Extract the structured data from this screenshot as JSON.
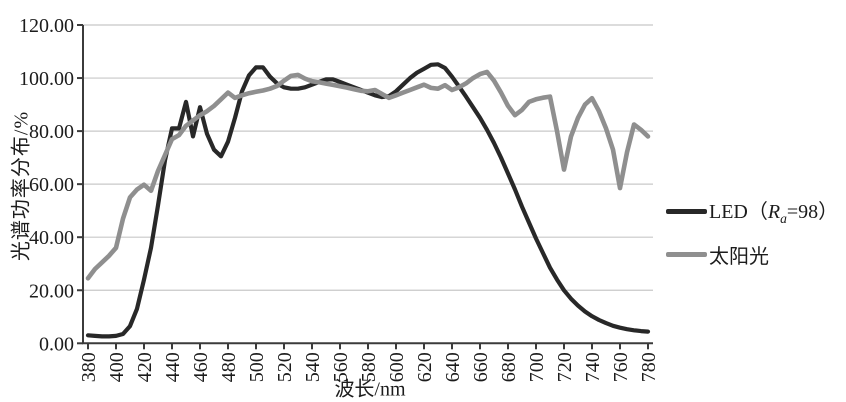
{
  "figure": {
    "background": "#ffffff",
    "grid_color": "#c8c8c8",
    "axis_color": "#3b3b3b",
    "text_color": "#1c1c1c"
  },
  "y_axis": {
    "title": "光谱功率分布/%",
    "min": 0,
    "max": 120,
    "step": 20,
    "tick_labels": [
      "0.00",
      "20.00",
      "40.00",
      "60.00",
      "80.00",
      "100.00",
      "120.00"
    ]
  },
  "x_axis": {
    "title": "波长/nm",
    "min": 380,
    "max": 780,
    "step": 20,
    "tick_labels": [
      "380",
      "400",
      "420",
      "440",
      "460",
      "480",
      "500",
      "520",
      "540",
      "560",
      "580",
      "600",
      "620",
      "640",
      "660",
      "680",
      "700",
      "720",
      "740",
      "760",
      "780"
    ]
  },
  "legend": {
    "items": [
      {
        "id": "led",
        "color": "#282828",
        "label_text": "LED（Ra=98）",
        "label_parts": [
          {
            "t": "LED（"
          },
          {
            "t": "R",
            "style": "italic"
          },
          {
            "t": "a",
            "style": "sub"
          },
          {
            "t": "=98）"
          }
        ]
      },
      {
        "id": "sun",
        "color": "#8f8f8f",
        "label_text": "太阳光",
        "label_parts": [
          {
            "t": "太阳光"
          }
        ]
      }
    ]
  },
  "chart_data": {
    "type": "line",
    "title": "",
    "xlabel": "波长/nm",
    "ylabel": "光谱功率分布/%",
    "xlim": [
      380,
      780
    ],
    "ylim": [
      0,
      120
    ],
    "grid": "horizontal",
    "legend_position": "right",
    "x": [
      380,
      385,
      390,
      395,
      400,
      405,
      410,
      415,
      420,
      425,
      430,
      435,
      440,
      445,
      450,
      455,
      460,
      465,
      470,
      475,
      480,
      485,
      490,
      495,
      500,
      505,
      510,
      515,
      520,
      525,
      530,
      535,
      540,
      545,
      550,
      555,
      560,
      565,
      570,
      575,
      580,
      585,
      590,
      595,
      600,
      605,
      610,
      615,
      620,
      625,
      630,
      635,
      640,
      645,
      650,
      655,
      660,
      665,
      670,
      675,
      680,
      685,
      690,
      695,
      700,
      705,
      710,
      715,
      720,
      725,
      730,
      735,
      740,
      745,
      750,
      755,
      760,
      765,
      770,
      775,
      780
    ],
    "series": [
      {
        "name": "LED（Ra=98）",
        "color": "#282828",
        "stroke_width": 4.2,
        "values": [
          3,
          2.8,
          2.6,
          2.6,
          2.8,
          3.5,
          6.5,
          13,
          24,
          36,
          52,
          69,
          81,
          81,
          91,
          78,
          89,
          79,
          73,
          70.5,
          76,
          85,
          95,
          101,
          104,
          104,
          100.5,
          98,
          96.5,
          96,
          96,
          96.5,
          97.5,
          98.5,
          99.5,
          99.5,
          98.5,
          97.5,
          96.5,
          95.5,
          94.5,
          93.5,
          92.8,
          93.2,
          95,
          97.5,
          100,
          102,
          103.5,
          105,
          105.2,
          103.8,
          100.5,
          96.8,
          93,
          89,
          85,
          80.5,
          75.5,
          70,
          64,
          58,
          51.5,
          45.5,
          39.5,
          34,
          28.5,
          24,
          20,
          16.8,
          14.2,
          12,
          10.2,
          8.8,
          7.6,
          6.6,
          5.9,
          5.3,
          4.9,
          4.6,
          4.4
        ]
      },
      {
        "name": "太阳光",
        "color": "#8f8f8f",
        "stroke_width": 4.6,
        "values": [
          24.5,
          28,
          30.5,
          33,
          36,
          47,
          55,
          58,
          59.8,
          57.5,
          65,
          71,
          77,
          78.5,
          82,
          84,
          86,
          87.5,
          89.5,
          92,
          94.5,
          92.5,
          93.5,
          94.3,
          94.8,
          95.3,
          96,
          97,
          99,
          100.8,
          101.2,
          99.8,
          98.8,
          98.4,
          97.9,
          97.4,
          96.9,
          96.4,
          95.8,
          95.2,
          95,
          95.5,
          94,
          92.5,
          93.5,
          94.5,
          95.5,
          96.5,
          97.5,
          96.3,
          96,
          97.3,
          95.5,
          96.5,
          98,
          100,
          101.5,
          102.3,
          99,
          94.5,
          89.5,
          86,
          88,
          91,
          92,
          92.6,
          93,
          80,
          65.5,
          78,
          85,
          90,
          92.4,
          87.5,
          81,
          73,
          58.5,
          72,
          82.5,
          80.5,
          78
        ]
      }
    ]
  }
}
